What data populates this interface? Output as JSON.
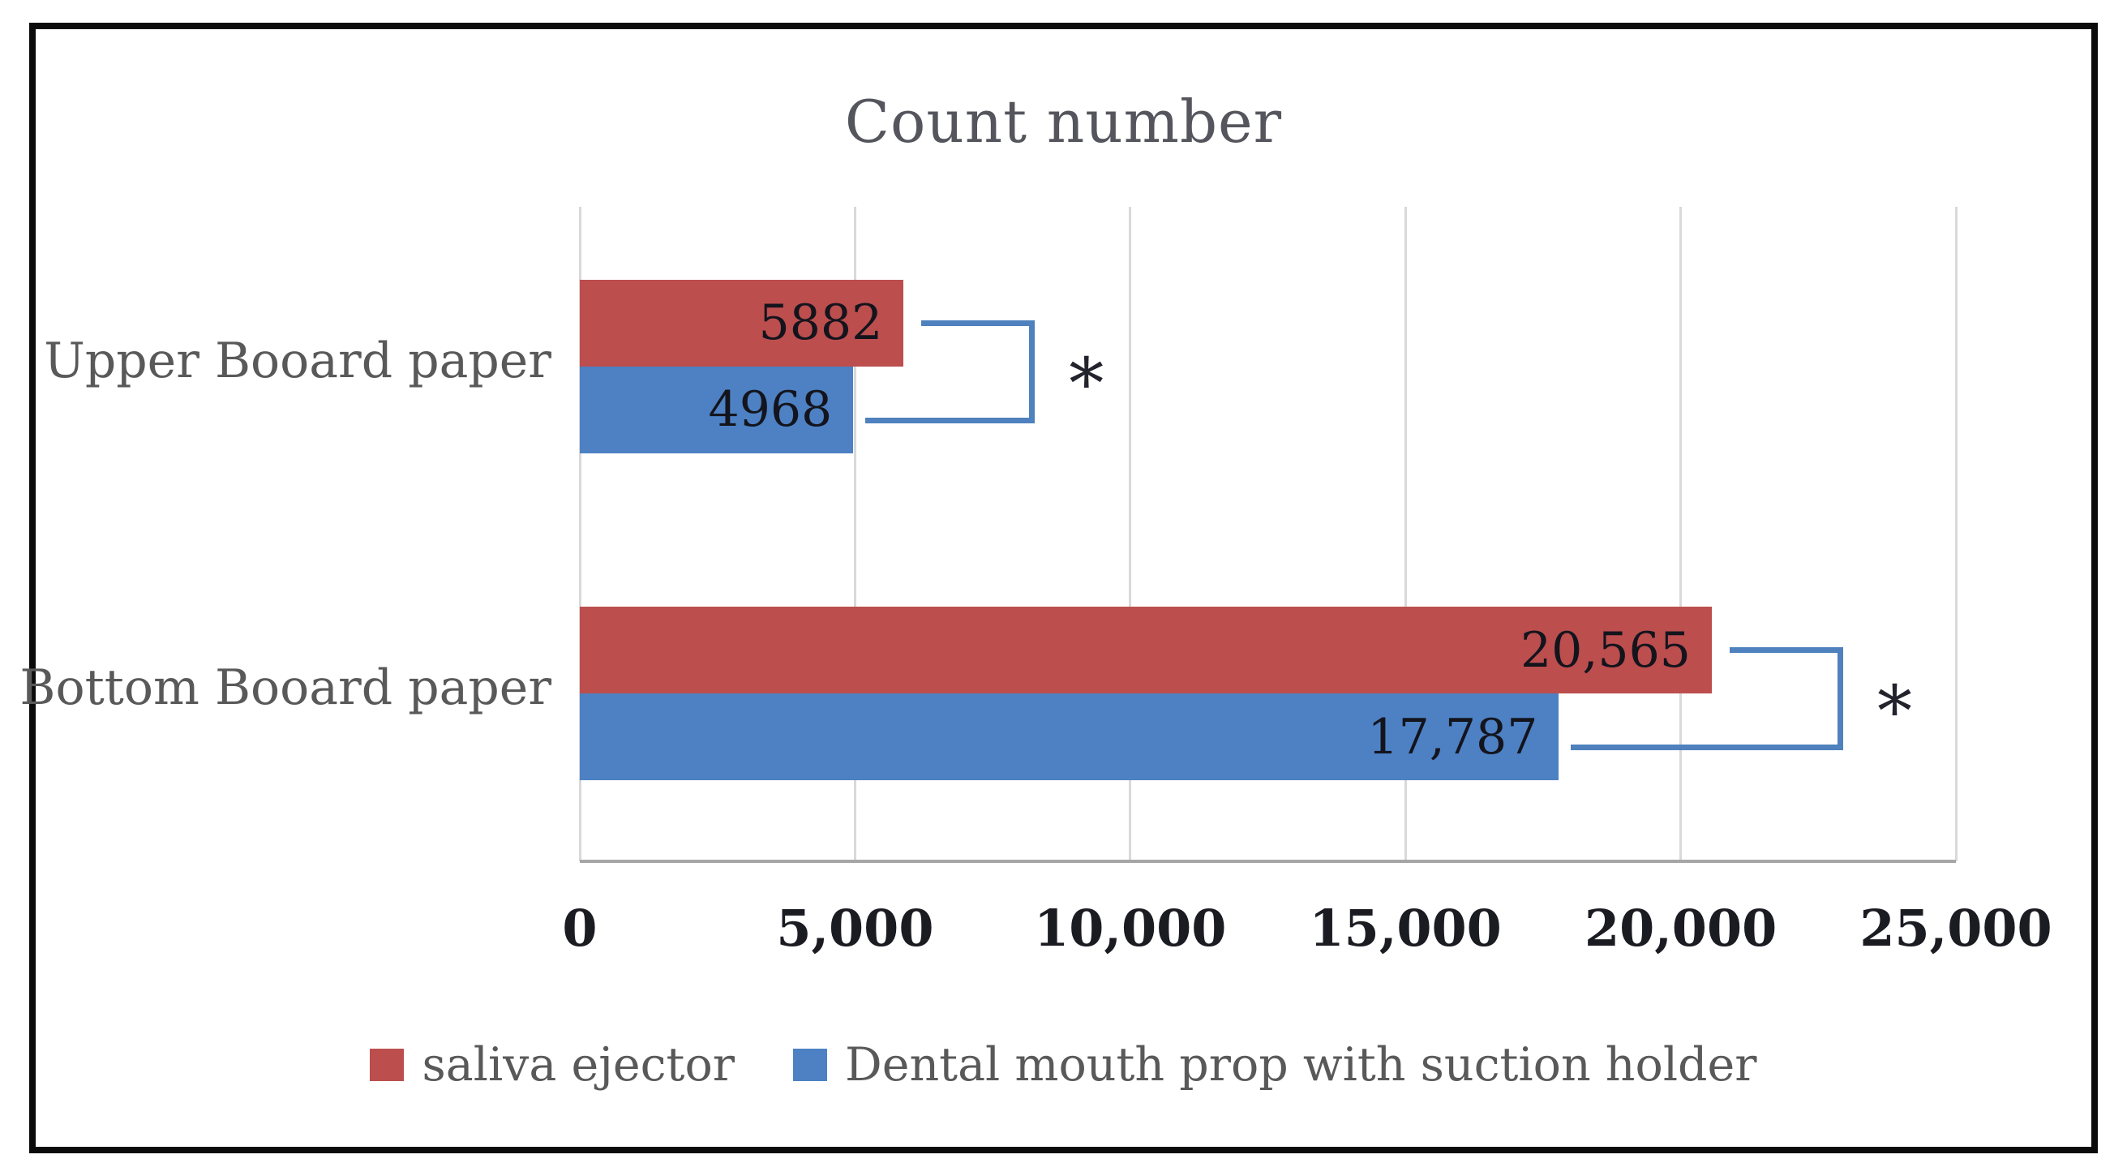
{
  "chart_data": {
    "type": "bar",
    "orientation": "horizontal",
    "title": "Count number",
    "categories": [
      "Upper Booard paper",
      "Bottom Booard paper"
    ],
    "series": [
      {
        "name": "saliva ejector",
        "color": "#bc4e4e",
        "values": [
          5882,
          20565
        ],
        "labels": [
          "5882",
          "20,565"
        ]
      },
      {
        "name": "Dental mouth prop with suction holder",
        "color": "#4d81c4",
        "values": [
          4968,
          17787
        ],
        "labels": [
          "4968",
          "17,787"
        ]
      }
    ],
    "xlim": [
      0,
      25000
    ],
    "x_ticks": [
      {
        "value": 0,
        "label": "0"
      },
      {
        "value": 5000,
        "label": "5,000"
      },
      {
        "value": 10000,
        "label": "10,000"
      },
      {
        "value": 15000,
        "label": "15,000"
      },
      {
        "value": 20000,
        "label": "20,000"
      },
      {
        "value": 25000,
        "label": "25,000"
      }
    ],
    "grid": "vertical",
    "legend_position": "bottom",
    "annotations": [
      {
        "category": "Upper Booard paper",
        "symbol": "*",
        "bracket_color": "#4e81bd"
      },
      {
        "category": "Bottom Booard paper",
        "symbol": "*",
        "bracket_color": "#4e81bd"
      }
    ]
  }
}
